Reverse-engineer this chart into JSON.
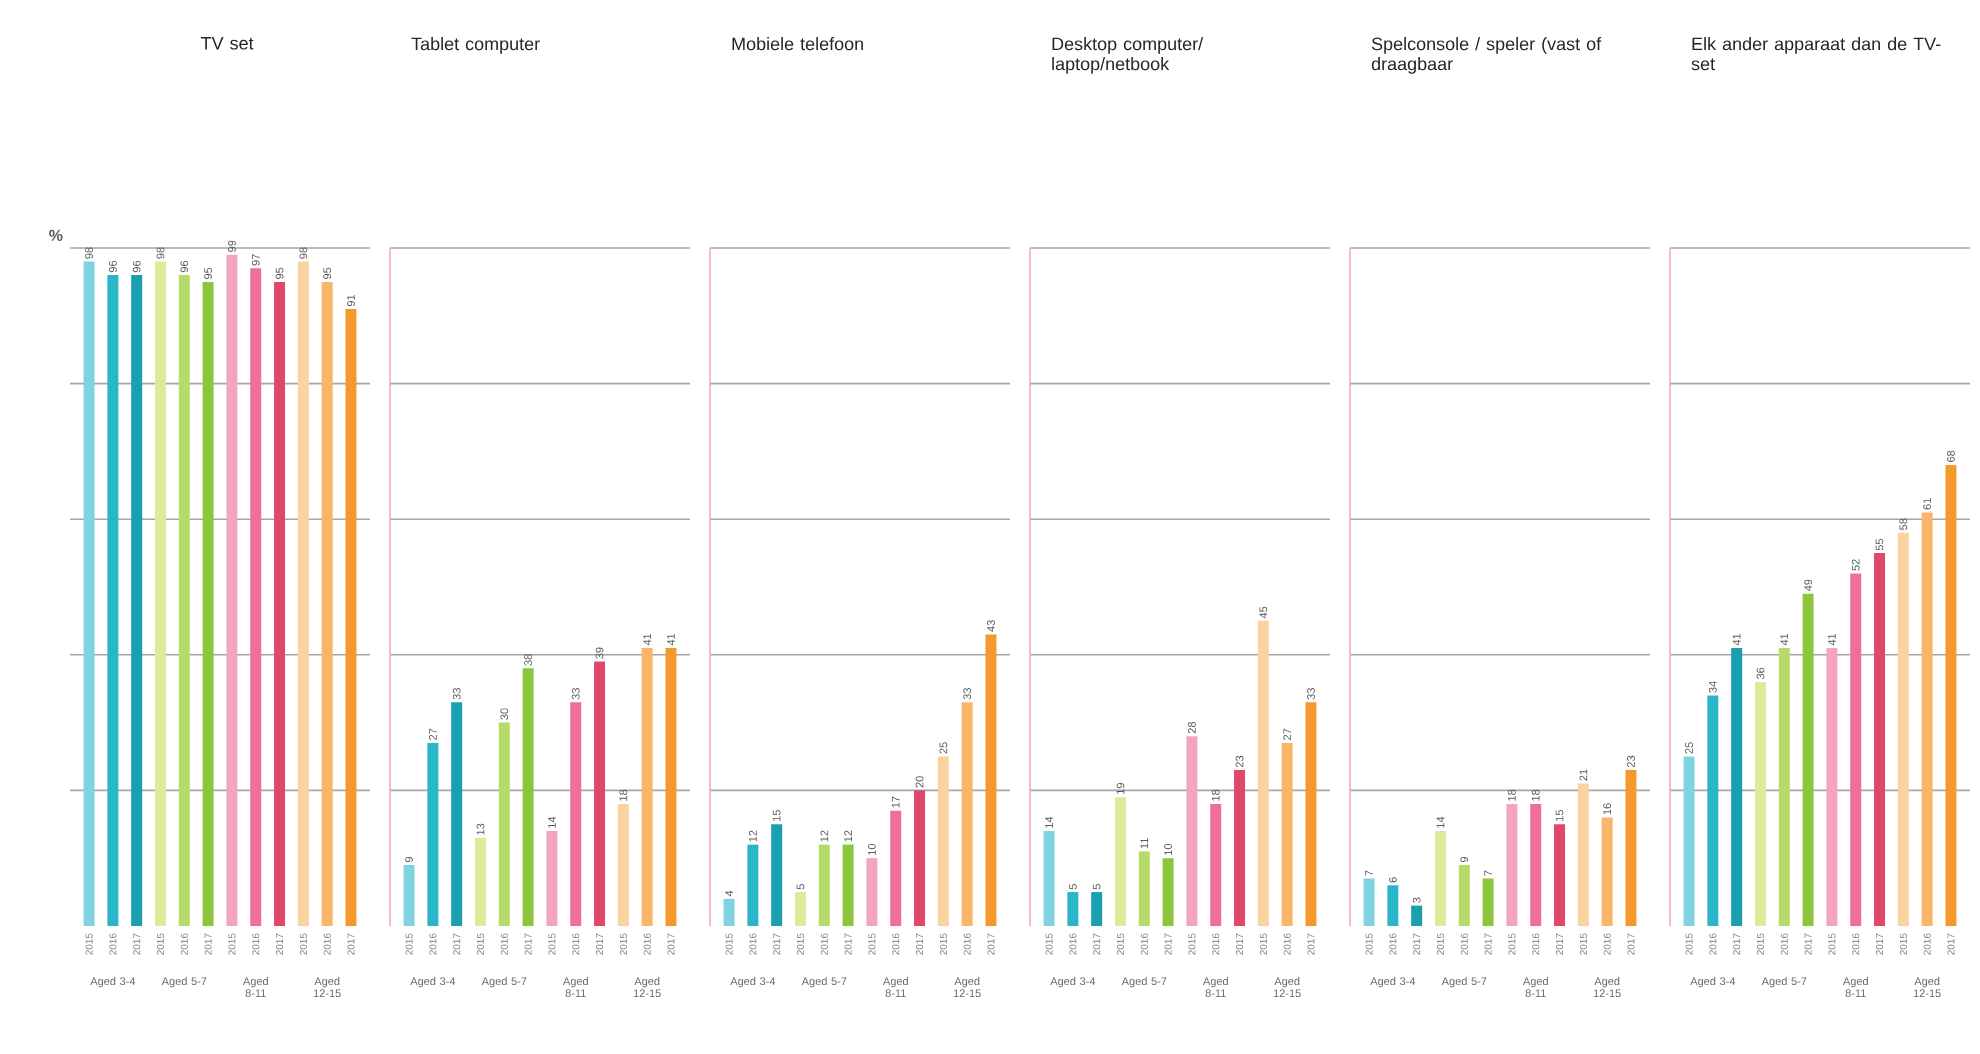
{
  "chart_data": [
    {
      "type": "bar",
      "title": "TV set",
      "ylabel": "%",
      "categories": [
        "2015",
        "2016",
        "2017",
        "2015",
        "2016",
        "2017",
        "2015",
        "2016",
        "2017",
        "2015",
        "2016",
        "2017"
      ],
      "values": [
        98,
        96,
        96,
        98,
        96,
        95,
        99,
        97,
        95,
        98,
        95,
        91
      ],
      "colors": [
        "#7fd3e0",
        "#29b6c8",
        "#1a9fb0",
        "#d9ec9a",
        "#b6db6a",
        "#8cc63f",
        "#f4a3c0",
        "#ee6f9a",
        "#e0486b",
        "#fbd3a0",
        "#f9b56a",
        "#f39a2c"
      ],
      "annotations": [
        "Aged 3-4",
        "Aged 5-7",
        "Aged 8-11",
        "Aged 12-15"
      ],
      "ylim": [
        0,
        100
      ],
      "yticks": [
        {
          "value": 20,
          "label": null
        },
        {
          "value": 40,
          "label": null
        },
        {
          "value": 60,
          "label": null
        },
        {
          "value": 80,
          "label": null
        },
        {
          "value": 100,
          "label": null
        }
      ],
      "grid": "y",
      "data_labels": true,
      "tick_labels": "x"
    },
    {
      "type": "bar",
      "title": "Tablet computer",
      "categories": [
        "2015",
        "2016",
        "2017",
        "2015",
        "2016",
        "2017",
        "2015",
        "2016",
        "2017",
        "2015",
        "2016",
        "2017"
      ],
      "values": [
        9,
        27,
        33,
        13,
        30,
        38,
        14,
        33,
        39,
        18,
        41,
        41
      ],
      "colors": [
        "#7fd3e0",
        "#29b6c8",
        "#1a9fb0",
        "#d9ec9a",
        "#b6db6a",
        "#8cc63f",
        "#f4a3c0",
        "#ee6f9a",
        "#e0486b",
        "#fbd3a0",
        "#f9b56a",
        "#f39a2c"
      ],
      "annotations": [
        "Aged 3-4",
        "Aged 5-7",
        "Aged 8-11",
        "Aged 12-15"
      ],
      "ylim": [
        0,
        100
      ],
      "yticks": [
        {
          "value": 20,
          "label": null
        },
        {
          "value": 40,
          "label": null
        },
        {
          "value": 60,
          "label": null
        },
        {
          "value": 80,
          "label": null
        },
        {
          "value": 100,
          "label": null
        }
      ],
      "grid": "y",
      "data_labels": true,
      "tick_labels": "x"
    },
    {
      "type": "bar",
      "title": "Mobiele telefoon",
      "categories": [
        "2015",
        "2016",
        "2017",
        "2015",
        "2016",
        "2017",
        "2015",
        "2016",
        "2017",
        "2015",
        "2016",
        "2017"
      ],
      "values": [
        4,
        12,
        15,
        5,
        12,
        12,
        10,
        17,
        20,
        25,
        33,
        43
      ],
      "colors": [
        "#7fd3e0",
        "#29b6c8",
        "#1a9fb0",
        "#d9ec9a",
        "#b6db6a",
        "#8cc63f",
        "#f4a3c0",
        "#ee6f9a",
        "#e0486b",
        "#fbd3a0",
        "#f9b56a",
        "#f39a2c"
      ],
      "annotations": [
        "Aged 3-4",
        "Aged 5-7",
        "Aged 8-11",
        "Aged 12-15"
      ],
      "ylim": [
        0,
        100
      ],
      "yticks": [
        {
          "value": 20,
          "label": null
        },
        {
          "value": 40,
          "label": null
        },
        {
          "value": 60,
          "label": null
        },
        {
          "value": 80,
          "label": null
        },
        {
          "value": 100,
          "label": null
        }
      ],
      "grid": "y",
      "data_labels": true,
      "tick_labels": "x"
    },
    {
      "type": "bar",
      "title": "Desktop computer/ laptop/netbook",
      "categories": [
        "2015",
        "2016",
        "2017",
        "2015",
        "2016",
        "2017",
        "2015",
        "2016",
        "2017",
        "2015",
        "2016",
        "2017"
      ],
      "values": [
        14,
        5,
        5,
        19,
        11,
        10,
        28,
        18,
        23,
        45,
        27,
        33
      ],
      "colors": [
        "#7fd3e0",
        "#29b6c8",
        "#1a9fb0",
        "#d9ec9a",
        "#b6db6a",
        "#8cc63f",
        "#f4a3c0",
        "#ee6f9a",
        "#e0486b",
        "#fbd3a0",
        "#f9b56a",
        "#f39a2c"
      ],
      "annotations": [
        "Aged 3-4",
        "Aged 5-7",
        "Aged 8-11",
        "Aged 12-15"
      ],
      "ylim": [
        0,
        100
      ],
      "yticks": [
        {
          "value": 20,
          "label": null
        },
        {
          "value": 40,
          "label": null
        },
        {
          "value": 60,
          "label": null
        },
        {
          "value": 80,
          "label": null
        },
        {
          "value": 100,
          "label": null
        }
      ],
      "grid": "y",
      "data_labels": true,
      "tick_labels": "x"
    },
    {
      "type": "bar",
      "title": "Spelconsole / speler (vast of draagbaar",
      "categories": [
        "2015",
        "2016",
        "2017",
        "2015",
        "2016",
        "2017",
        "2015",
        "2016",
        "2017",
        "2015",
        "2016",
        "2017"
      ],
      "values": [
        7,
        6,
        3,
        14,
        9,
        7,
        18,
        18,
        15,
        21,
        16,
        23
      ],
      "colors": [
        "#7fd3e0",
        "#29b6c8",
        "#1a9fb0",
        "#d9ec9a",
        "#b6db6a",
        "#8cc63f",
        "#f4a3c0",
        "#ee6f9a",
        "#e0486b",
        "#fbd3a0",
        "#f9b56a",
        "#f39a2c"
      ],
      "annotations": [
        "Aged 3-4",
        "Aged 5-7",
        "Aged 8-11",
        "Aged 12-15"
      ],
      "ylim": [
        0,
        100
      ],
      "yticks": [
        {
          "value": 20,
          "label": null
        },
        {
          "value": 40,
          "label": null
        },
        {
          "value": 60,
          "label": null
        },
        {
          "value": 80,
          "label": null
        },
        {
          "value": 100,
          "label": null
        }
      ],
      "grid": "y",
      "data_labels": true,
      "tick_labels": "x"
    },
    {
      "type": "bar",
      "title": "Elk ander apparaat dan de TV-set",
      "categories": [
        "2015",
        "2016",
        "2017",
        "2015",
        "2016",
        "2017",
        "2015",
        "2016",
        "2017",
        "2015",
        "2016",
        "2017"
      ],
      "values": [
        25,
        34,
        41,
        36,
        41,
        49,
        41,
        52,
        55,
        58,
        61,
        68
      ],
      "colors": [
        "#7fd3e0",
        "#29b6c8",
        "#1a9fb0",
        "#d9ec9a",
        "#b6db6a",
        "#8cc63f",
        "#f4a3c0",
        "#ee6f9a",
        "#e0486b",
        "#fbd3a0",
        "#f9b56a",
        "#f39a2c"
      ],
      "annotations": [
        "Aged 3-4",
        "Aged 5-7",
        "Aged 8-11",
        "Aged 12-15"
      ],
      "ylim": [
        0,
        100
      ],
      "yticks": [
        {
          "value": 20,
          "label": null
        },
        {
          "value": 40,
          "label": null
        },
        {
          "value": 60,
          "label": null
        },
        {
          "value": 80,
          "label": null
        },
        {
          "value": 100,
          "label": null
        }
      ],
      "grid": "y",
      "data_labels": true,
      "tick_labels": "x"
    }
  ]
}
